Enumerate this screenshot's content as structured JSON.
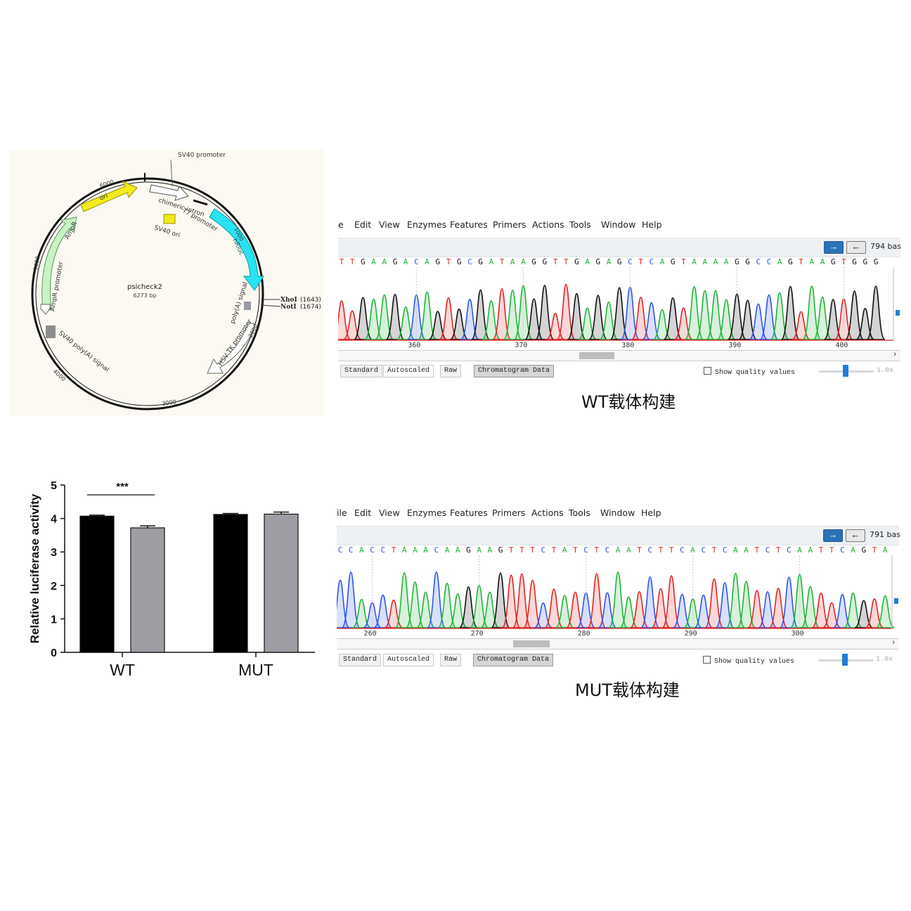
{
  "plasmid": {
    "name": "psicheck2",
    "size": "6273 bp",
    "features": {
      "sv40_promoter": "SV40 promoter",
      "chimeric_intron": "chimeric intron",
      "t7_promoter": "T7 promoter",
      "sv40_ori": "SV40 ori",
      "hrluc": "hRluc",
      "ori": "ori",
      "ampr": "AmpR",
      "ampr_promoter": "AmpR promoter",
      "sv40_polya": "SV40 poly(A) signal",
      "polya_signal": "poly(A) signal",
      "hsv_tk_promoter": "HSV TK promoter",
      "xhoi": "XhoI",
      "xhoi_pos": "(1643)",
      "noti": "NotI",
      "noti_pos": "(1674)"
    },
    "ticks": [
      "1000",
      "2000",
      "3000",
      "4000",
      "5000",
      "6000"
    ],
    "colors": {
      "ori": "#f2ea1b",
      "hrluc": "#29e3f1",
      "ampr": "#c8f2c4",
      "grey_box": "#8c8c8c"
    }
  },
  "bar_chart": {
    "chart_data": {
      "type": "bar",
      "categories": [
        "WT",
        "MUT"
      ],
      "series": [
        {
          "values": [
            4.07,
            4.12
          ],
          "errors": [
            0.03,
            0.03
          ],
          "color": "#000000"
        },
        {
          "values": [
            3.72,
            4.13
          ],
          "errors": [
            0.06,
            0.06
          ],
          "color": "#9d9da3"
        }
      ],
      "ylabel": "Relative luciferase activity",
      "ylim": [
        0,
        5
      ],
      "yticks": [
        "0",
        "1",
        "2",
        "3",
        "4",
        "5"
      ],
      "annotation": "***"
    }
  },
  "wt_window": {
    "menu": [
      "e",
      "Edit",
      "View",
      "Enzymes",
      "Features",
      "Primers",
      "Actions",
      "Tools",
      "Window",
      "Help"
    ],
    "bases_label": "794 bas",
    "sequence": "TTGAAGACAGTGCGATAAGGTTGAGAGCTCAGTAAAAGGCCAGTAAGTGGG",
    "positions": [
      "360",
      "370",
      "380",
      "390",
      "400"
    ],
    "right_edge_label": "1.",
    "tabs": {
      "standard": "Standard",
      "autoscaled": "Autoscaled",
      "raw": "Raw",
      "chromatogram": "Chromatogram Data"
    },
    "quality_label": "Show quality values",
    "zoom": "1.0x",
    "scroll_arrow": "›"
  },
  "mut_window": {
    "menu": [
      "ile",
      "Edit",
      "View",
      "Enzymes",
      "Features",
      "Primers",
      "Actions",
      "Tools",
      "Window",
      "Help"
    ],
    "bases_label": "791 bas",
    "sequence": "CCACCTAAACAAGAAGTTTCTATCTCAATCTTCACTCAATCTCAATTCAGTA",
    "positions": [
      "260",
      "270",
      "280",
      "290",
      "300"
    ],
    "right_edge_label": "1",
    "tabs": {
      "standard": "Standard",
      "autoscaled": "Autoscaled",
      "raw": "Raw",
      "chromatogram": "Chromatogram Data"
    },
    "quality_label": "Show quality values",
    "zoom": "1.0x",
    "scroll_arrow": "›"
  },
  "captions": {
    "wt": "WT载体构建",
    "mut": "MUT载体构建"
  },
  "base_colors": {
    "A": "#22b33a",
    "C": "#2f55e8",
    "G": "#111111",
    "T": "#e02525"
  }
}
